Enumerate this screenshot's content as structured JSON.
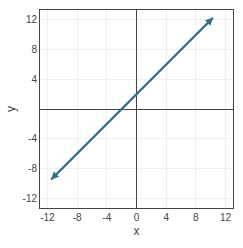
{
  "chart_data": {
    "type": "line",
    "xlabel": "x",
    "ylabel": "y",
    "x": [
      -11.5,
      10.3
    ],
    "values": [
      -9.5,
      12.3
    ],
    "color": "#2e6e8e",
    "xlim": [
      -13,
      13
    ],
    "ylim": [
      -13,
      13
    ],
    "xticks": [
      -12,
      -8,
      -4,
      0,
      4,
      8,
      12
    ],
    "yticks": [
      -12,
      -8,
      -4,
      4,
      8,
      12
    ],
    "grid": true
  }
}
